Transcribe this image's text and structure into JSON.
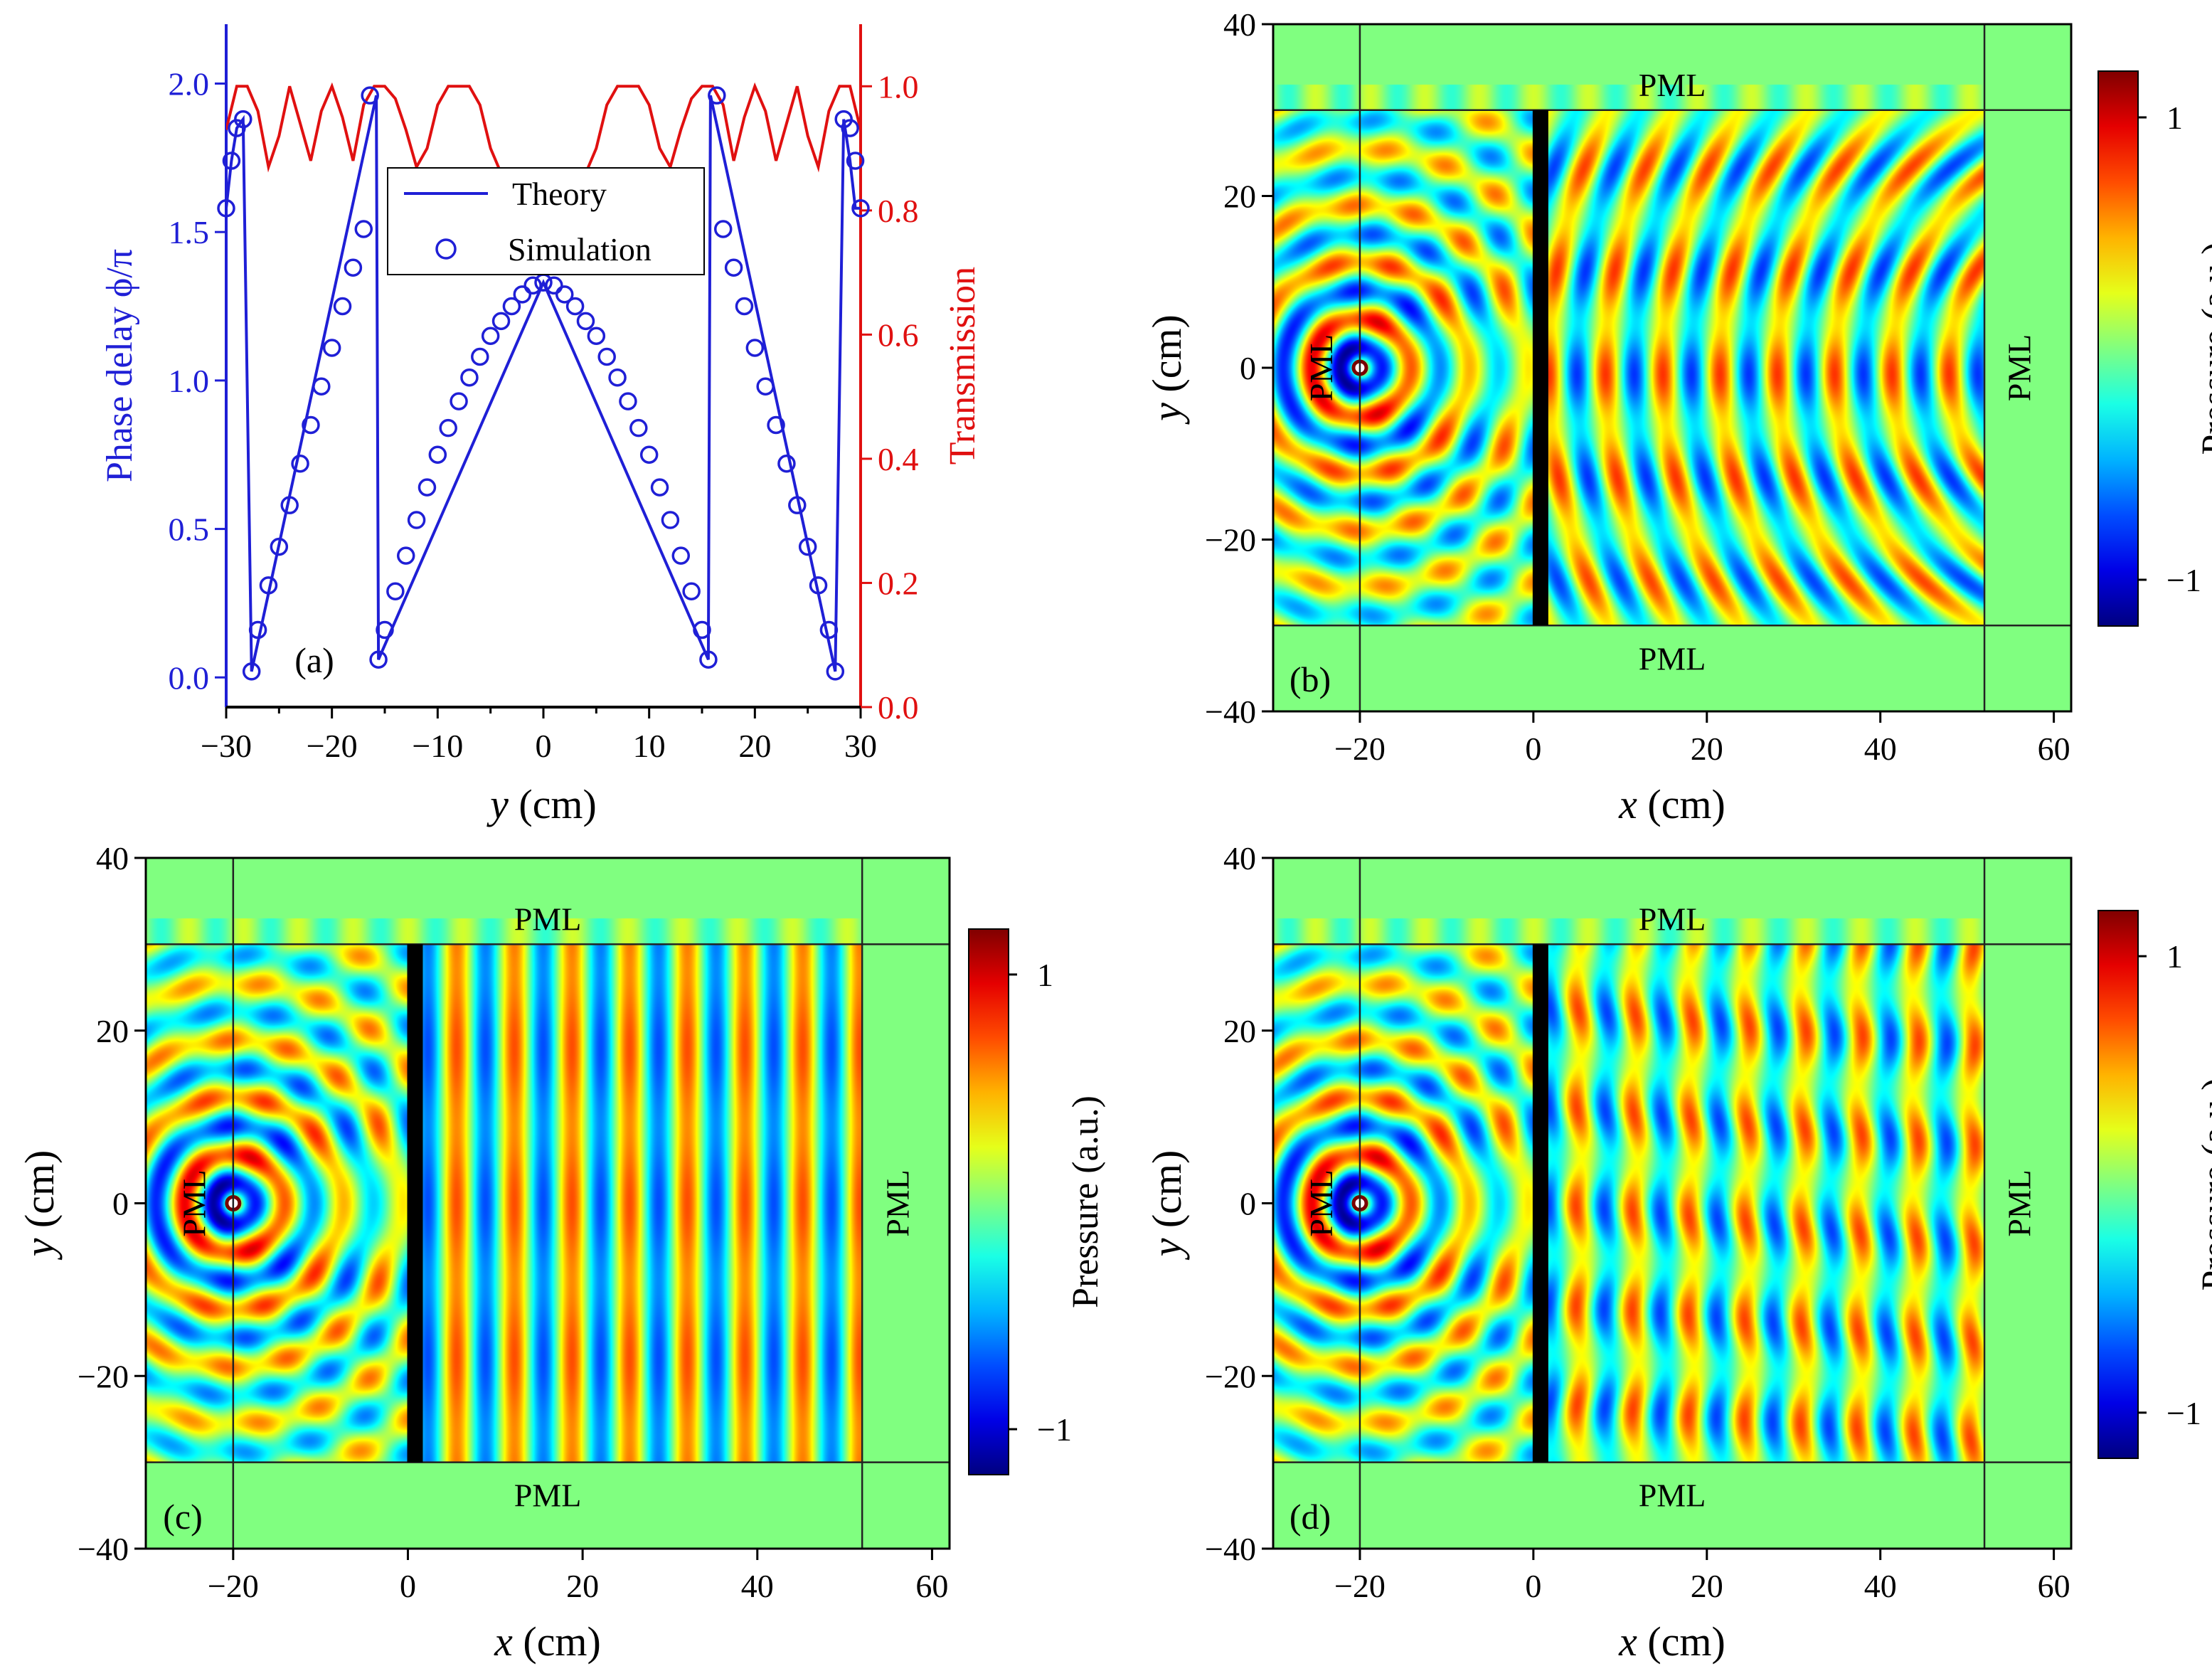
{
  "chart_data": [
    {
      "type": "line",
      "panel_label": "(a)",
      "xlabel_var": "y",
      "xlabel_unit": " (cm)",
      "ylabel": "Phase delay ϕ/π",
      "y2label": "Transmission",
      "xlim": [
        -30,
        30
      ],
      "ylim": [
        -0.1,
        2.2
      ],
      "y2lim": [
        0,
        1.1
      ],
      "xticks": [
        "−30",
        "−20",
        "−10",
        "0",
        "10",
        "20",
        "30"
      ],
      "xtick_values": [
        -30,
        -20,
        -10,
        0,
        10,
        20,
        30
      ],
      "yticks": [
        "0.0",
        "0.5",
        "1.0",
        "1.5",
        "2.0"
      ],
      "ytick_values": [
        0,
        0.5,
        1,
        1.5,
        2
      ],
      "y2ticks": [
        "0.0",
        "0.2",
        "0.4",
        "0.6",
        "0.8",
        "1.0"
      ],
      "y2tick_values": [
        0,
        0.2,
        0.4,
        0.6,
        0.8,
        1.0
      ],
      "legend": [
        {
          "name": "Theory",
          "style": "line",
          "color": "#1f1fd6"
        },
        {
          "name": "Simulation",
          "style": "circle",
          "color": "#1f1fd6"
        }
      ],
      "series": [
        {
          "name": "Theory",
          "axis": "left",
          "color": "#1f1fd6",
          "x": [
            -30,
            -29.5,
            -29,
            -28.4,
            -27.6,
            -15.8,
            -15.6,
            0,
            15.6,
            15.8,
            27.6,
            28.4,
            29,
            29.5,
            30
          ],
          "y": [
            1.58,
            1.74,
            1.85,
            1.88,
            0.02,
            1.96,
            0.06,
            1.33,
            0.06,
            1.96,
            0.02,
            1.88,
            1.74,
            1.58,
            1.58
          ]
        },
        {
          "name": "Simulation",
          "axis": "left",
          "color": "#1f1fd6",
          "x": [
            -30,
            -29.5,
            -29,
            -28.4,
            -27.6,
            -27,
            -26,
            -25,
            -24,
            -23,
            -22,
            -21,
            -20,
            -19,
            -18,
            -17,
            -16.4,
            -15.6,
            -15,
            -14,
            -13,
            -12,
            -11,
            -10,
            -9,
            -8,
            -7,
            -6,
            -5,
            -4,
            -3,
            -2,
            -1,
            0,
            1,
            2,
            3,
            4,
            5,
            6,
            7,
            8,
            9,
            10,
            11,
            12,
            13,
            14,
            15,
            15.6,
            16.4,
            17,
            18,
            19,
            20,
            21,
            22,
            23,
            24,
            25,
            26,
            27,
            27.6,
            28.4,
            29,
            29.5,
            30
          ],
          "y": [
            1.58,
            1.74,
            1.85,
            1.88,
            0.02,
            0.16,
            0.31,
            0.44,
            0.58,
            0.72,
            0.85,
            0.98,
            1.11,
            1.25,
            1.38,
            1.51,
            1.96,
            0.06,
            0.16,
            0.29,
            0.41,
            0.53,
            0.64,
            0.75,
            0.84,
            0.93,
            1.01,
            1.08,
            1.15,
            1.2,
            1.25,
            1.29,
            1.32,
            1.33,
            1.32,
            1.29,
            1.25,
            1.2,
            1.15,
            1.08,
            1.01,
            0.93,
            0.84,
            0.75,
            0.64,
            0.53,
            0.41,
            0.29,
            0.16,
            0.06,
            1.96,
            1.51,
            1.38,
            1.25,
            1.11,
            0.98,
            0.85,
            0.72,
            0.58,
            0.44,
            0.31,
            0.16,
            0.02,
            1.88,
            1.85,
            1.74,
            1.58
          ]
        },
        {
          "name": "Transmission",
          "axis": "right",
          "color": "#e01010",
          "x": [
            -30,
            -29,
            -28,
            -27,
            -26,
            -25,
            -24,
            -23,
            -22,
            -21,
            -20,
            -19,
            -18,
            -17,
            -16,
            -15,
            -14,
            -13,
            -12,
            -11,
            -10,
            -9,
            -8,
            -7,
            -6,
            -5,
            -4,
            -3,
            -2,
            -1,
            0,
            1,
            2,
            3,
            4,
            5,
            6,
            7,
            8,
            9,
            10,
            11,
            12,
            13,
            14,
            15,
            16,
            17,
            18,
            19,
            20,
            21,
            22,
            23,
            24,
            25,
            26,
            27,
            28,
            29,
            30
          ],
          "y": [
            0.93,
            1.0,
            1.0,
            0.96,
            0.87,
            0.92,
            1.0,
            0.94,
            0.88,
            0.96,
            1.0,
            0.95,
            0.88,
            0.97,
            1.0,
            1.0,
            0.98,
            0.93,
            0.87,
            0.9,
            0.97,
            1.0,
            1.0,
            1.0,
            0.97,
            0.9,
            0.86,
            0.85,
            0.85,
            0.85,
            0.85,
            0.85,
            0.85,
            0.85,
            0.86,
            0.9,
            0.97,
            1.0,
            1.0,
            1.0,
            0.97,
            0.9,
            0.87,
            0.93,
            0.98,
            1.0,
            1.0,
            0.97,
            0.88,
            0.95,
            1.0,
            0.96,
            0.88,
            0.94,
            1.0,
            0.92,
            0.87,
            0.96,
            1.0,
            1.0,
            0.93
          ]
        }
      ]
    },
    {
      "type": "heatmap",
      "panel_label": "(b)",
      "xlabel_var": "x",
      "xlabel_unit": " (cm)",
      "ylabel_var": "y",
      "ylabel_unit": " (cm)",
      "xlim": [
        -30,
        62
      ],
      "ylim": [
        -40,
        40
      ],
      "xticks": [
        "−20",
        "0",
        "20",
        "40",
        "60"
      ],
      "xtick_values": [
        -20,
        0,
        20,
        40,
        60
      ],
      "yticks": [
        "−40",
        "−20",
        "0",
        "20",
        "40"
      ],
      "ytick_values": [
        -40,
        -20,
        0,
        20,
        40
      ],
      "pml_labels": [
        "PML",
        "PML",
        "PML",
        "PML"
      ],
      "colorbar_label": "Pressure (a.u.)",
      "colorbar_ticks": [
        "1",
        "−1"
      ],
      "colorbar_range": [
        -1.2,
        1.2
      ],
      "source_position": [
        -20,
        0
      ],
      "metasurface_x": 0,
      "transmitted_pattern": "focusing"
    },
    {
      "type": "heatmap",
      "panel_label": "(c)",
      "xlabel_var": "x",
      "xlabel_unit": " (cm)",
      "ylabel_var": "y",
      "ylabel_unit": " (cm)",
      "xlim": [
        -30,
        62
      ],
      "ylim": [
        -40,
        40
      ],
      "xticks": [
        "−20",
        "0",
        "20",
        "40",
        "60"
      ],
      "xtick_values": [
        -20,
        0,
        20,
        40,
        60
      ],
      "yticks": [
        "−40",
        "−20",
        "0",
        "20",
        "40"
      ],
      "ytick_values": [
        -40,
        -20,
        0,
        20,
        40
      ],
      "pml_labels": [
        "PML",
        "PML",
        "PML",
        "PML"
      ],
      "colorbar_label": "Pressure (a.u.)",
      "colorbar_ticks": [
        "1",
        "−1"
      ],
      "colorbar_range": [
        -1.2,
        1.2
      ],
      "source_position": [
        -20,
        0
      ],
      "metasurface_x": 0,
      "transmitted_pattern": "plane"
    },
    {
      "type": "heatmap",
      "panel_label": "(d)",
      "xlabel_var": "x",
      "xlabel_unit": " (cm)",
      "ylabel_var": "y",
      "ylabel_unit": " (cm)",
      "xlim": [
        -30,
        62
      ],
      "ylim": [
        -40,
        40
      ],
      "xticks": [
        "−20",
        "0",
        "20",
        "40",
        "60"
      ],
      "xtick_values": [
        -20,
        0,
        20,
        40,
        60
      ],
      "yticks": [
        "−40",
        "−20",
        "0",
        "20",
        "40"
      ],
      "ytick_values": [
        -40,
        -20,
        0,
        20,
        40
      ],
      "pml_labels": [
        "PML",
        "PML",
        "PML",
        "PML"
      ],
      "colorbar_label": "Pressure (a.u.)",
      "colorbar_ticks": [
        "1",
        "−1"
      ],
      "colorbar_range": [
        -1.2,
        1.2
      ],
      "source_position": [
        -20,
        0
      ],
      "metasurface_x": 0,
      "transmitted_pattern": "multi"
    }
  ],
  "colors": {
    "blue": "#1f1fd6",
    "red": "#e01010",
    "pml_green": "#86f07a",
    "metasurface": "#000000"
  }
}
